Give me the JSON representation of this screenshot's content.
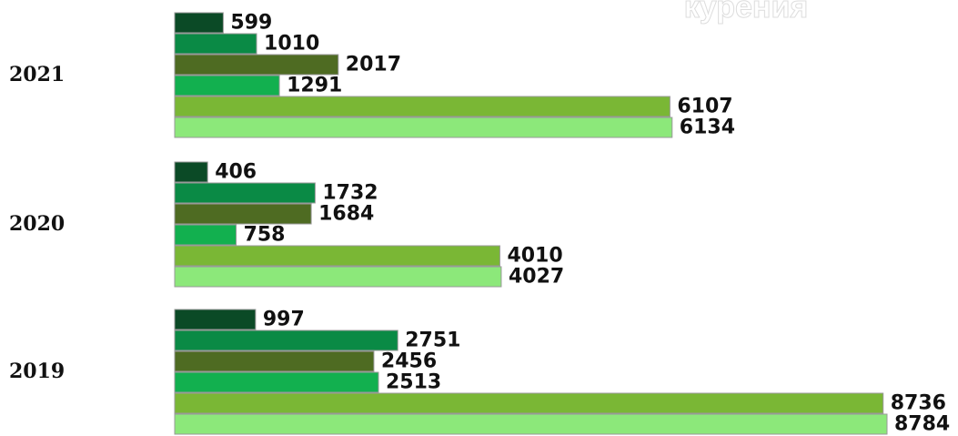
{
  "chart_data": {
    "type": "bar",
    "orientation": "horizontal",
    "title": "курения",
    "categories": [
      "2021",
      "2020",
      "2019"
    ],
    "series": [
      {
        "color": "#0b4a26",
        "values": [
          599,
          406,
          997
        ]
      },
      {
        "color": "#0a8a45",
        "values": [
          1010,
          1732,
          2751
        ]
      },
      {
        "color": "#4e6b22",
        "values": [
          2017,
          1684,
          2456
        ]
      },
      {
        "color": "#12b04f",
        "values": [
          1291,
          758,
          2513
        ]
      },
      {
        "color": "#7ab735",
        "values": [
          6107,
          4010,
          8736
        ]
      },
      {
        "color": "#8ce87a",
        "values": [
          6134,
          4027,
          8784
        ]
      }
    ]
  }
}
